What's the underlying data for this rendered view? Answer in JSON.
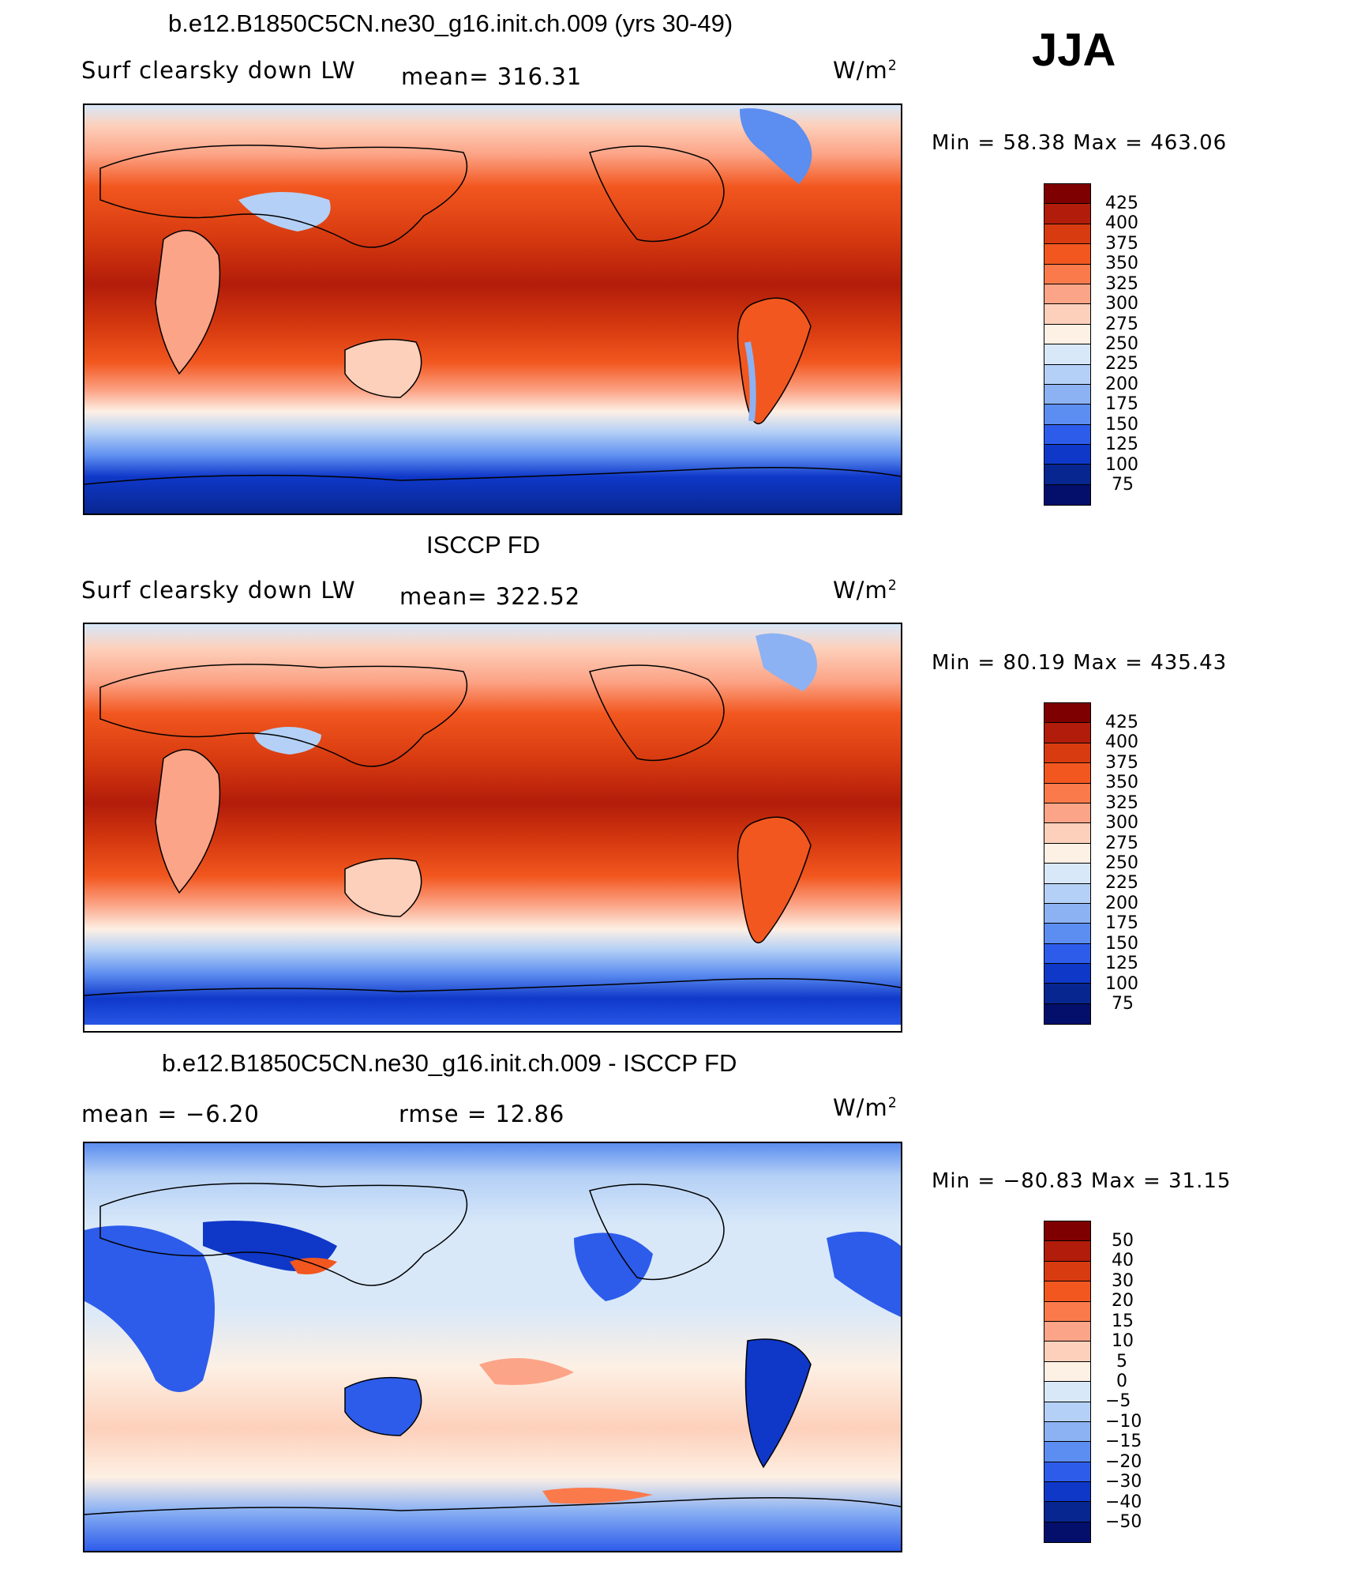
{
  "season": "JJA",
  "panels": [
    {
      "id": "model",
      "title": "b.e12.B1850C5CN.ne30_g16.init.ch.009 (yrs 30-49)",
      "left_label": "Surf clearsky down LW",
      "center_label": "mean= 316.31",
      "unit_base": "W/m",
      "unit_exp": "2",
      "minmax": "Min =   58.38  Max  =  463.06",
      "min": 58.38,
      "max": 463.06,
      "colorbar_ticks": [
        "425",
        "400",
        "375",
        "350",
        "325",
        "300",
        "275",
        "250",
        "225",
        "200",
        "175",
        "150",
        "125",
        "100",
        "75"
      ]
    },
    {
      "id": "obs",
      "title": "ISCCP FD",
      "left_label": "Surf clearsky down LW",
      "center_label": "mean= 322.52",
      "unit_base": "W/m",
      "unit_exp": "2",
      "minmax": "Min =   80.19  Max  =  435.43",
      "min": 80.19,
      "max": 435.43,
      "colorbar_ticks": [
        "425",
        "400",
        "375",
        "350",
        "325",
        "300",
        "275",
        "250",
        "225",
        "200",
        "175",
        "150",
        "125",
        "100",
        "75"
      ]
    },
    {
      "id": "diff",
      "title": "b.e12.B1850C5CN.ne30_g16.init.ch.009 - ISCCP FD",
      "left_label": "mean =    −6.20",
      "center_label": "rmse =    12.86",
      "unit_base": "W/m",
      "unit_exp": "2",
      "minmax": "Min = −80.83  Max  =    31.15",
      "min": -80.83,
      "max": 31.15,
      "colorbar_ticks": [
        "50",
        "40",
        "30",
        "20",
        "15",
        "10",
        "5",
        "0",
        "−5",
        "−10",
        "−15",
        "−20",
        "−30",
        "−40",
        "−50"
      ]
    }
  ],
  "colors": {
    "scale": [
      "#7f0000",
      "#b21c0a",
      "#d83b10",
      "#f2571f",
      "#fb7a4c",
      "#fca487",
      "#fdd0bb",
      "#fdf0e4",
      "#d8e8f9",
      "#b4d0f6",
      "#8cb2f3",
      "#5c8df0",
      "#2d5ceb",
      "#0f38c9",
      "#082690",
      "#040e6b"
    ],
    "land_line": "#000000"
  }
}
